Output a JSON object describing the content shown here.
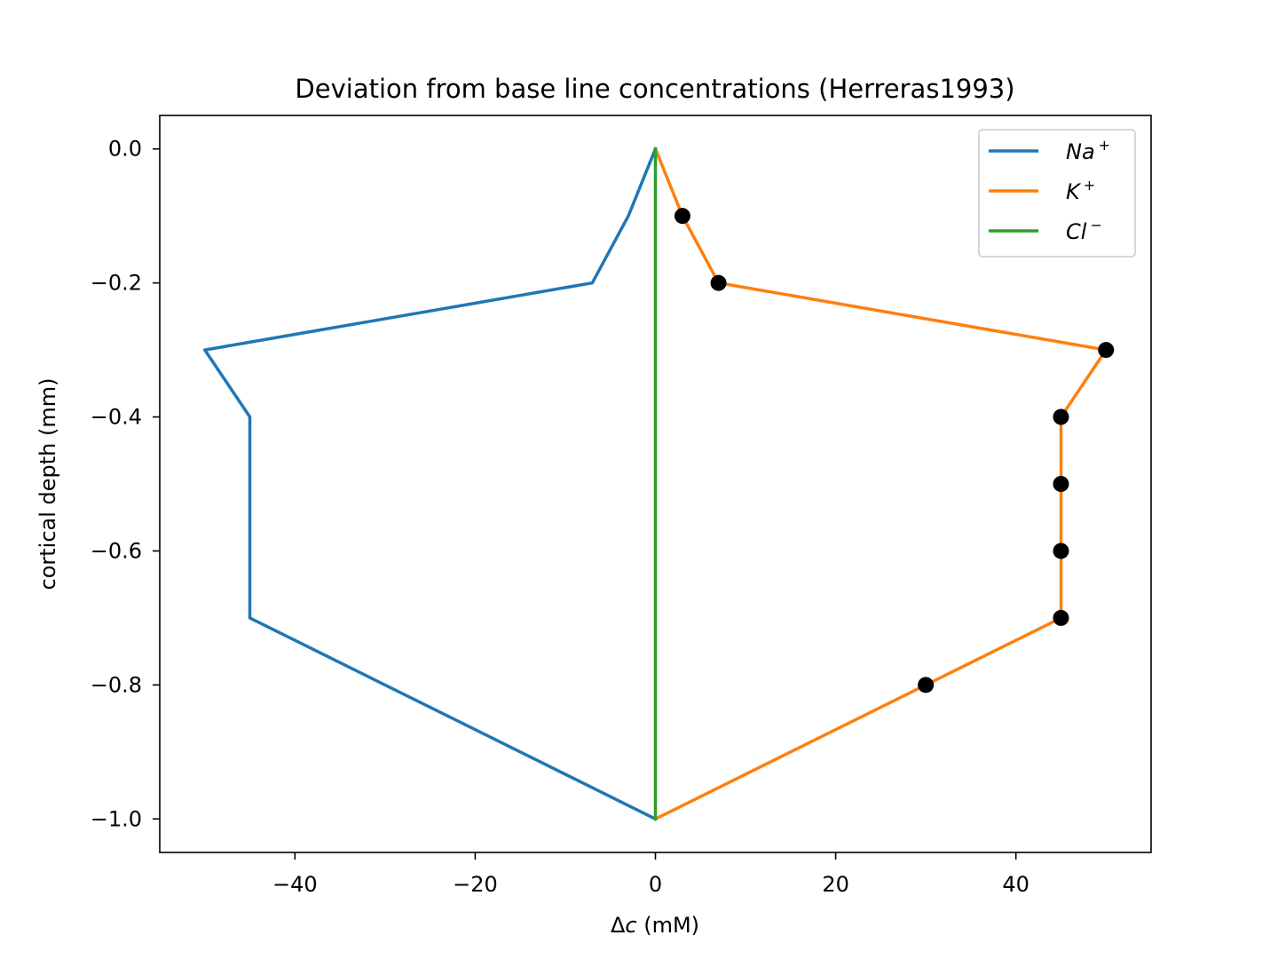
{
  "chart_data": {
    "type": "line",
    "title": "Deviation from base line concentrations (Herreras1993)",
    "xlabel_prefix": "Δ",
    "xlabel_var": "c",
    "xlabel_suffix": " (mM)",
    "ylabel": "cortical depth (mm)",
    "xlim": [
      -55,
      55
    ],
    "ylim": [
      -1.05,
      0.05
    ],
    "x_ticks": [
      -40,
      -20,
      0,
      20,
      40
    ],
    "x_tick_labels": [
      "−40",
      "−20",
      "0",
      "20",
      "40"
    ],
    "y_ticks": [
      0.0,
      -0.2,
      -0.4,
      -0.6,
      -0.8,
      -1.0
    ],
    "y_tick_labels": [
      "0.0",
      "−0.2",
      "−0.4",
      "−0.6",
      "−0.8",
      "−1.0"
    ],
    "legend_position": "top-right",
    "series": [
      {
        "name": "Na",
        "sup": "+",
        "color": "#1f77b4",
        "points": [
          [
            0,
            0.0
          ],
          [
            -3,
            -0.1
          ],
          [
            -7,
            -0.2
          ],
          [
            -50,
            -0.3
          ],
          [
            -45,
            -0.4
          ],
          [
            -45,
            -0.5
          ],
          [
            -45,
            -0.6
          ],
          [
            -45,
            -0.7
          ],
          [
            -30,
            -0.8
          ],
          [
            -15,
            -0.9
          ],
          [
            0,
            -1.0
          ]
        ]
      },
      {
        "name": "K",
        "sup": "+",
        "color": "#ff7f0e",
        "points": [
          [
            0,
            0.0
          ],
          [
            3,
            -0.1
          ],
          [
            7,
            -0.2
          ],
          [
            50,
            -0.3
          ],
          [
            45,
            -0.4
          ],
          [
            45,
            -0.5
          ],
          [
            45,
            -0.6
          ],
          [
            45,
            -0.7
          ],
          [
            30,
            -0.8
          ],
          [
            15,
            -0.9
          ],
          [
            0,
            -1.0
          ]
        ]
      },
      {
        "name": "Cl",
        "sup": "−",
        "color": "#2ca02c",
        "points": [
          [
            0,
            0.0
          ],
          [
            0,
            -0.1
          ],
          [
            0,
            -0.2
          ],
          [
            0,
            -0.3
          ],
          [
            0,
            -0.4
          ],
          [
            0,
            -0.5
          ],
          [
            0,
            -0.6
          ],
          [
            0,
            -0.7
          ],
          [
            0,
            -0.8
          ],
          [
            0,
            -0.9
          ],
          [
            0,
            -1.0
          ]
        ]
      }
    ],
    "markers": {
      "color": "#000000",
      "points": [
        [
          3,
          -0.1
        ],
        [
          7,
          -0.2
        ],
        [
          50,
          -0.3
        ],
        [
          45,
          -0.4
        ],
        [
          45,
          -0.5
        ],
        [
          45,
          -0.6
        ],
        [
          45,
          -0.7
        ],
        [
          30,
          -0.8
        ]
      ]
    }
  }
}
